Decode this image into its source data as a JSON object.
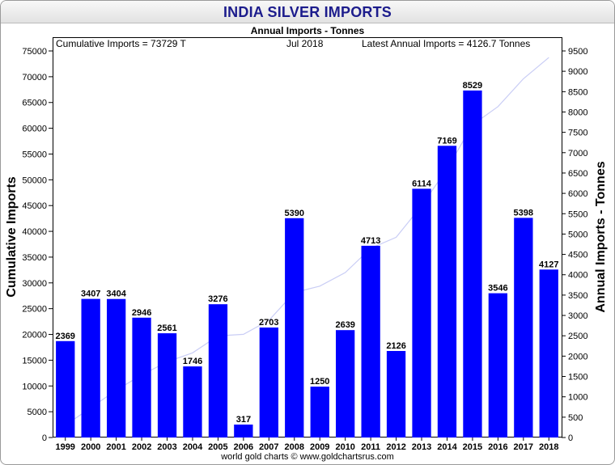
{
  "chart_data": {
    "type": "bar",
    "title": "INDIA SILVER IMPORTS",
    "subtitle": "Annual Imports - Tonnes",
    "header_left": "Cumulative Imports = 73729 T",
    "header_center": "Jul 2018",
    "header_right": "Latest Annual Imports = 4126.7 Tonnes",
    "ylabel_left": "Cumulative Imports",
    "ylabel_right": "Annual Imports - Tonnes",
    "footer": "world gold charts © www.goldchartsrus.com",
    "categories": [
      "1999",
      "2000",
      "2001",
      "2002",
      "2003",
      "2004",
      "2005",
      "2006",
      "2007",
      "2008",
      "2009",
      "2010",
      "2011",
      "2012",
      "2013",
      "2014",
      "2015",
      "2016",
      "2017",
      "2018"
    ],
    "series": [
      {
        "axis": "right",
        "color": "#0000ff",
        "values": [
          2369,
          3407,
          3404,
          2946,
          2561,
          1746,
          3276,
          317,
          2703,
          5390,
          1250,
          2639,
          4713,
          2126,
          6114,
          7169,
          8529,
          3546,
          5398,
          4127
        ],
        "labels": [
          "2369",
          "3407",
          "3404",
          "2946",
          "2561",
          "1746",
          "3276",
          "317",
          "2703",
          "5390",
          "1250",
          "2639",
          "4713",
          "2126",
          "6114",
          "7169",
          "8529",
          "3546",
          "5398",
          "4127"
        ]
      },
      {
        "axis": "left",
        "color": "#c9cdf5",
        "values": [
          2369,
          5776,
          9180,
          12126,
          14687,
          16433,
          19709,
          20026,
          22729,
          28119,
          29369,
          32008,
          36721,
          38847,
          44961,
          52130,
          60659,
          64205,
          69603,
          73729
        ]
      }
    ],
    "y_left": {
      "min": 0,
      "max": 75000,
      "ticks": [
        0,
        5000,
        10000,
        15000,
        20000,
        25000,
        30000,
        35000,
        40000,
        45000,
        50000,
        55000,
        60000,
        65000,
        70000,
        75000
      ]
    },
    "y_right": {
      "min": 0,
      "max": 9500,
      "ticks": [
        0,
        500,
        1000,
        1500,
        2000,
        2500,
        3000,
        3500,
        4000,
        4500,
        5000,
        5500,
        6000,
        6500,
        7000,
        7500,
        8000,
        8500,
        9000,
        9500
      ]
    },
    "grid": false,
    "legend": "none"
  }
}
